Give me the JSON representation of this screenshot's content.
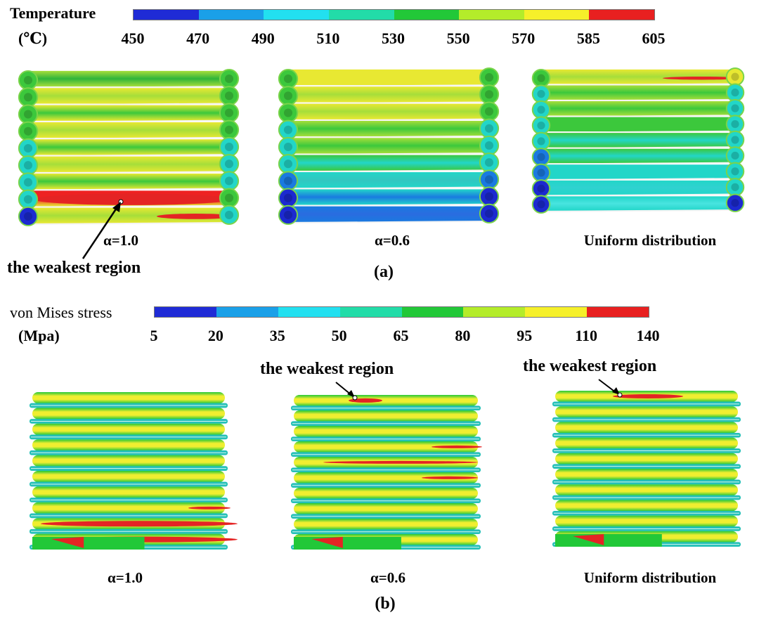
{
  "temperature_scale": {
    "title": "Temperature",
    "unit": "(℃)",
    "ticks": [
      "450",
      "470",
      "490",
      "510",
      "530",
      "550",
      "570",
      "585",
      "605"
    ],
    "colors": [
      "#1f2bd6",
      "#1aa0e8",
      "#22e0f0",
      "#22dca8",
      "#22c838",
      "#b4ec2a",
      "#f6f02a",
      "#e82020"
    ]
  },
  "panel_a": {
    "label": "(a)",
    "callout": "the weakest region",
    "captions": [
      "α=1.0",
      "α=0.6",
      "Uniform distribution"
    ]
  },
  "stress_scale": {
    "title": "von Mises stress",
    "unit": "(Mpa)",
    "ticks": [
      "5",
      "20",
      "35",
      "50",
      "65",
      "80",
      "95",
      "110",
      "140"
    ],
    "colors": [
      "#1f2bd6",
      "#1aa0e8",
      "#22e0f0",
      "#22dca8",
      "#22c838",
      "#b4ec2a",
      "#f6f02a",
      "#e82020"
    ]
  },
  "panel_b": {
    "label": "(b)",
    "callouts": [
      "the weakest region",
      "the weakest region"
    ],
    "captions": [
      "α=1.0",
      "α=0.6",
      "Uniform distribution"
    ]
  }
}
